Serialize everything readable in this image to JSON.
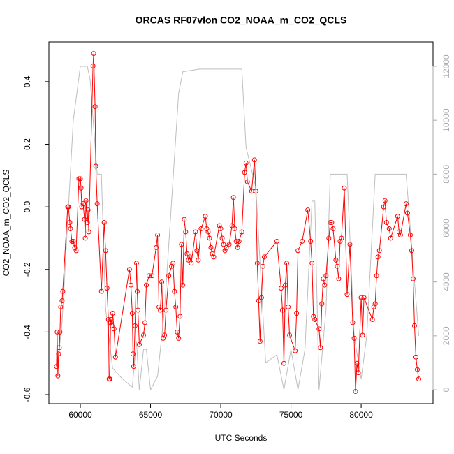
{
  "chart_data": {
    "type": "line",
    "title": "ORCAS RF07vlon CO2_NOAA_m_CO2_QCLS",
    "xlabel": "UTC Seconds",
    "ylabel": "CO2_NOAA_m_CO2_QCLS",
    "xlim": [
      57760,
      85120
    ],
    "ylim": [
      -0.629,
      0.527
    ],
    "y2lim": [
      -518,
      12907
    ],
    "xticks": [
      60000,
      65000,
      70000,
      75000,
      80000
    ],
    "yticks": [
      -0.6,
      -0.4,
      -0.2,
      {
        "value": 0,
        "label": "0.0"
      },
      0.2,
      0.4
    ],
    "y2ticks": [
      0,
      2000,
      4000,
      6000,
      8000,
      10000,
      12000
    ],
    "series": [
      {
        "color": "#ff0000",
        "markers": true,
        "x": [
          58300,
          58350,
          58400,
          58450,
          58500,
          58550,
          58600,
          58700,
          58750,
          59100,
          59150,
          59250,
          59300,
          59400,
          59500,
          59600,
          59700,
          59900,
          60000,
          60050,
          60100,
          60200,
          60300,
          60350,
          60400,
          60500,
          60550,
          60600,
          60900,
          60950,
          61050,
          61100,
          61200,
          61500,
          61700,
          61800,
          61900,
          62000,
          62050,
          62100,
          62150,
          62200,
          62250,
          62300,
          62400,
          62500,
          63500,
          63600,
          63700,
          63750,
          63800,
          63900,
          64000,
          64050,
          64100,
          64200,
          64500,
          64600,
          64700,
          64900,
          65100,
          65400,
          65500,
          65600,
          65700,
          65800,
          65900,
          66000,
          66100,
          66300,
          66500,
          66600,
          66700,
          66800,
          66900,
          67000,
          67100,
          67200,
          67300,
          67400,
          67500,
          67600,
          67700,
          67800,
          67900,
          68200,
          68300,
          68400,
          68600,
          68900,
          69000,
          69100,
          69200,
          69300,
          69400,
          69500,
          69900,
          70000,
          70100,
          70200,
          70300,
          70400,
          70600,
          70800,
          70900,
          71000,
          71100,
          71200,
          71300,
          71500,
          71700,
          71800,
          71900,
          72200,
          72400,
          72500,
          72600,
          72700,
          72800,
          72900,
          73000,
          73100,
          74000,
          74300,
          74400,
          74500,
          74600,
          74700,
          74800,
          74900,
          75300,
          75400,
          75500,
          75800,
          76200,
          76400,
          76500,
          76600,
          76700,
          77000,
          77100,
          77200,
          77300,
          77400,
          77500,
          77700,
          77800,
          77900,
          78000,
          78200,
          78300,
          78400,
          78500,
          78600,
          78800,
          79000,
          79200,
          79400,
          79500,
          79600,
          79700,
          79800,
          80000,
          80100,
          80200,
          80800,
          80900,
          81000,
          81100,
          81200,
          81300,
          81600,
          81700,
          81800,
          82000,
          82100,
          82600,
          82700,
          82800,
          83200,
          83300,
          83500,
          83600,
          83700,
          83800,
          83900,
          84000,
          84100
        ],
        "values": [
          -0.51,
          -0.4,
          -0.54,
          -0.47,
          -0.45,
          -0.4,
          -0.32,
          -0.3,
          -0.27,
          0.0,
          0.0,
          -0.05,
          -0.07,
          -0.11,
          -0.11,
          -0.13,
          -0.14,
          0.09,
          0.09,
          0.06,
          0.0,
          0.01,
          -0.04,
          -0.1,
          0.02,
          -0.05,
          -0.01,
          -0.08,
          0.45,
          0.49,
          0.32,
          0.13,
          0.01,
          -0.27,
          -0.05,
          -0.14,
          -0.26,
          -0.36,
          -0.55,
          -0.55,
          -0.37,
          -0.36,
          -0.38,
          -0.34,
          -0.39,
          -0.48,
          -0.2,
          -0.25,
          -0.34,
          -0.47,
          -0.51,
          -0.38,
          -0.18,
          -0.27,
          -0.33,
          -0.44,
          -0.41,
          -0.37,
          -0.25,
          -0.22,
          -0.22,
          -0.13,
          -0.09,
          -0.32,
          -0.33,
          -0.24,
          -0.42,
          -0.41,
          -0.33,
          -0.22,
          -0.19,
          -0.18,
          -0.27,
          -0.32,
          -0.4,
          -0.42,
          -0.35,
          -0.12,
          -0.25,
          -0.04,
          -0.08,
          -0.15,
          -0.17,
          -0.16,
          -0.18,
          -0.08,
          -0.14,
          -0.17,
          -0.07,
          -0.03,
          -0.07,
          -0.08,
          -0.1,
          -0.13,
          -0.15,
          -0.16,
          -0.06,
          -0.07,
          -0.1,
          -0.12,
          -0.14,
          -0.13,
          -0.12,
          -0.06,
          0.03,
          -0.07,
          -0.11,
          -0.13,
          -0.11,
          -0.08,
          0.11,
          0.14,
          0.08,
          0.05,
          0.15,
          0.05,
          -0.18,
          -0.3,
          -0.43,
          -0.29,
          -0.19,
          -0.16,
          -0.11,
          -0.26,
          -0.33,
          -0.5,
          -0.25,
          -0.18,
          -0.32,
          -0.41,
          -0.46,
          -0.34,
          -0.14,
          -0.11,
          -0.01,
          -0.11,
          -0.18,
          -0.35,
          -0.36,
          -0.39,
          -0.45,
          -0.31,
          -0.23,
          -0.25,
          -0.22,
          -0.1,
          -0.05,
          -0.05,
          -0.07,
          -0.17,
          -0.19,
          -0.23,
          -0.11,
          -0.1,
          0.06,
          -0.28,
          -0.12,
          -0.37,
          -0.42,
          -0.59,
          -0.5,
          -0.53,
          -0.29,
          -0.41,
          -0.29,
          -0.36,
          -0.32,
          -0.31,
          -0.22,
          -0.16,
          -0.14,
          0.0,
          0.02,
          -0.05,
          -0.07,
          -0.1,
          -0.03,
          -0.08,
          -0.09,
          0.01,
          -0.02,
          -0.09,
          -0.14,
          -0.23,
          -0.38,
          -0.48,
          -0.52,
          -0.55
        ]
      },
      {
        "color": "#bebebe",
        "axis": "y2",
        "markers": false,
        "x": [
          58300,
          58700,
          59500,
          60000,
          60500,
          60700,
          61200,
          61500,
          61800,
          62300,
          63000,
          63700,
          64000,
          64200,
          64500,
          64700,
          65000,
          65500,
          66000,
          67000,
          67300,
          68500,
          71500,
          71800,
          72500,
          73200,
          74000,
          74500,
          75000,
          75500,
          76000,
          76500,
          76700,
          77000,
          77500,
          77800,
          78500,
          79000,
          79500,
          80000,
          80400,
          81000,
          82000,
          83200,
          83500,
          84100
        ],
        "values": [
          500,
          2500,
          10000,
          12000,
          12000,
          11500,
          8000,
          8000,
          3000,
          800,
          400,
          100,
          1800,
          0,
          1500,
          1500,
          0,
          500,
          3000,
          11000,
          11800,
          11900,
          11900,
          9000,
          7500,
          1000,
          1300,
          0,
          1500,
          0,
          1500,
          7000,
          7000,
          0,
          3000,
          8000,
          8000,
          8000,
          2000,
          400,
          2000,
          8000,
          8000,
          8000,
          6000,
          2000
        ]
      }
    ]
  }
}
